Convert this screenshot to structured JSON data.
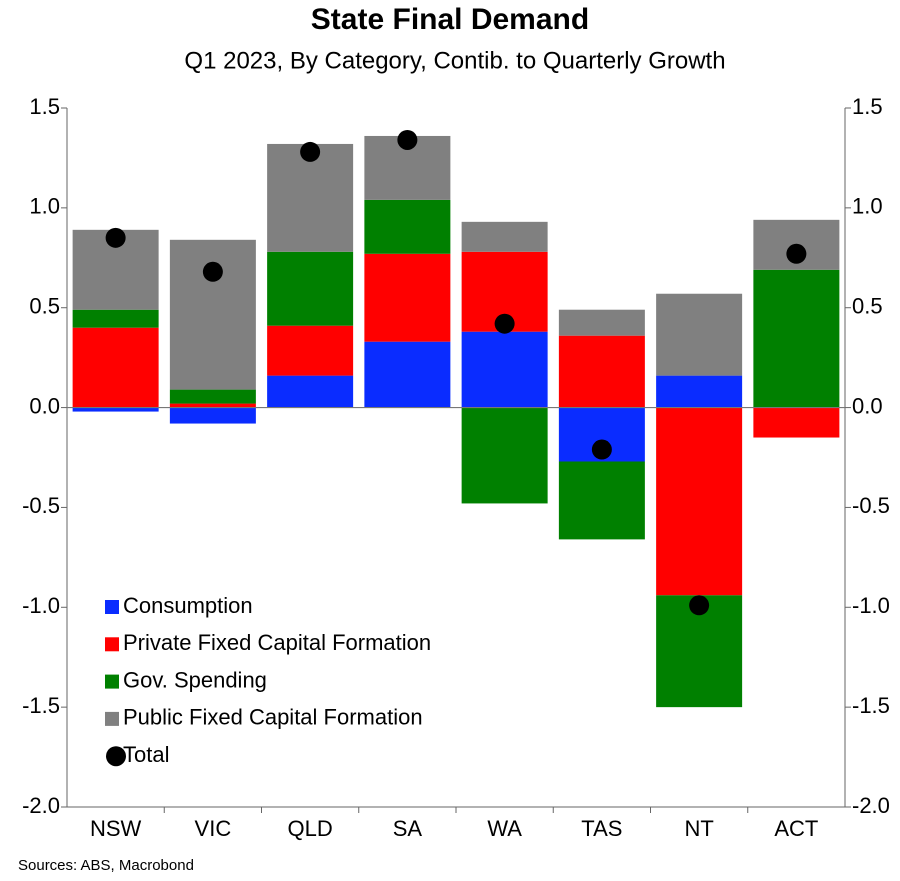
{
  "chart_data": {
    "type": "bar",
    "stacked": true,
    "title": "State Final Demand",
    "subtitle": "Q1 2023, By Category, Contib. to Quarterly Growth",
    "source": "Sources: ABS, Macrobond",
    "categories": [
      "NSW",
      "VIC",
      "QLD",
      "SA",
      "WA",
      "TAS",
      "NT",
      "ACT"
    ],
    "series": [
      {
        "name": "Consumption",
        "color": "#0a2cff",
        "values": [
          -0.02,
          -0.08,
          0.16,
          0.33,
          0.38,
          -0.27,
          0.16,
          0
        ]
      },
      {
        "name": "Private Fixed Capital Formation",
        "color": "#ff0000",
        "values": [
          0.4,
          0.02,
          0.25,
          0.44,
          0.4,
          0.36,
          -0.94,
          -0.15
        ]
      },
      {
        "name": "Gov. Spending",
        "color": "#008000",
        "values": [
          0.09,
          0.07,
          0.37,
          0.27,
          -0.48,
          -0.39,
          -0.56,
          0.69
        ]
      },
      {
        "name": "Public Fixed Capital Formation",
        "color": "#808080",
        "values": [
          0.4,
          0.75,
          0.54,
          0.32,
          0.15,
          0.13,
          0.41,
          0.25
        ]
      },
      {
        "name": "Total",
        "type": "scatter",
        "color": "#000000",
        "values": [
          0.85,
          0.68,
          1.28,
          1.34,
          0.42,
          -0.21,
          -0.99,
          0.77
        ]
      }
    ],
    "ylim": [
      -2.0,
      1.5
    ],
    "yticks": [
      {
        "value": -2,
        "label": "-2.0"
      },
      -1.5,
      {
        "value": -1,
        "label": "-1.0"
      },
      -0.5,
      {
        "value": 0,
        "label": "0.0"
      },
      0.5,
      {
        "value": 1,
        "label": "1.0"
      },
      1.5
    ],
    "y2lim": [
      -2.0,
      1.5
    ],
    "y2ticks": [
      {
        "value": -2,
        "label": "-2.0"
      },
      -1.5,
      {
        "value": -1,
        "label": "-1.0"
      },
      -0.5,
      {
        "value": 0,
        "label": "0.0"
      },
      0.5,
      {
        "value": 1,
        "label": "1.0"
      },
      1.5
    ],
    "legend": "lower left"
  }
}
